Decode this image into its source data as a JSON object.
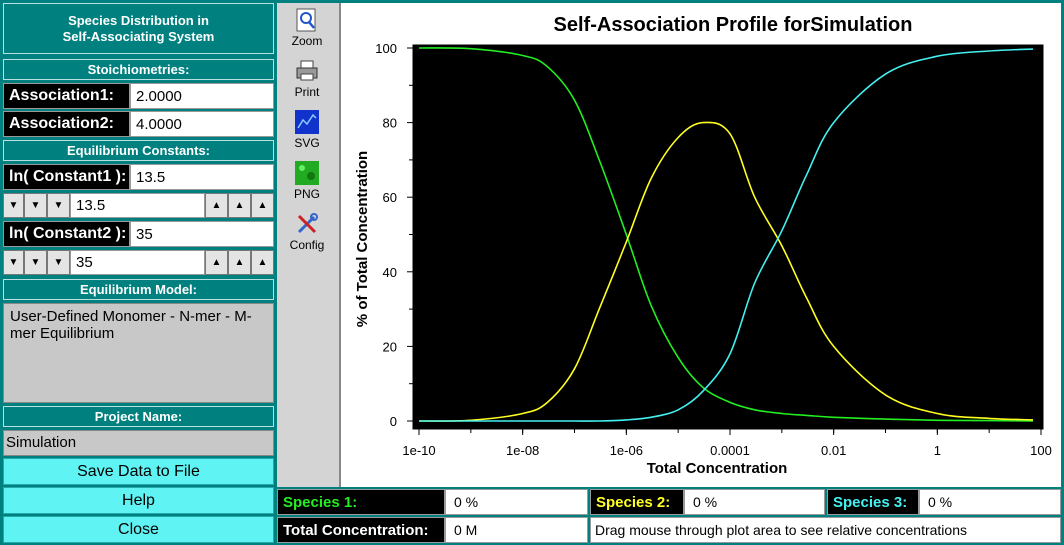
{
  "panel": {
    "title_line1": "Species Distribution in",
    "title_line2": "Self-Associating System",
    "stoich_header": "Stoichiometries:",
    "assoc1_label": "Association1:",
    "assoc1_value": "2.0000",
    "assoc2_label": "Association2:",
    "assoc2_value": "4.0000",
    "eq_header": "Equilibrium Constants:",
    "k1_label": "ln( Constant1 ):",
    "k1_value": "13.5",
    "k1_counter": "13.5",
    "k2_label": "ln( Constant2 ):",
    "k2_value": "35",
    "k2_counter": "35",
    "model_header": "Equilibrium Model:",
    "model_text": "User-Defined Monomer - N-mer - M-mer Equilibrium",
    "project_header": "Project Name:",
    "project_value": "Simulation",
    "save_label": "Save Data to File",
    "help_label": "Help",
    "close_label": "Close"
  },
  "toolbar": {
    "zoom": "Zoom",
    "print": "Print",
    "svg": "SVG",
    "png": "PNG",
    "config": "Config"
  },
  "status": {
    "species1_label": "Species 1:",
    "species1_value": "0 %",
    "species2_label": "Species 2:",
    "species2_value": "0 %",
    "species3_label": "Species 3:",
    "species3_value": "0 %",
    "total_label": "Total Concentration:",
    "total_value": "0 M",
    "hint": "Drag mouse through plot area to see relative concentrations"
  },
  "colors": {
    "teal": "#00807f",
    "cyan_button": "#5ff3f3",
    "species1": "#22ee22",
    "species2": "#ffff22",
    "species3": "#44f0f0"
  },
  "chart_data": {
    "type": "line",
    "title": "Self-Association Profile forSimulation",
    "xlabel": "Total Concentration",
    "ylabel": "% of Total Concentration",
    "xscale": "log",
    "xlim": [
      1e-10,
      100
    ],
    "ylim": [
      0,
      100
    ],
    "xticks": [
      "1e-10",
      "1e-08",
      "1e-06",
      "0.0001",
      "0.01",
      "1",
      "100"
    ],
    "yticks": [
      "0",
      "20",
      "40",
      "60",
      "80",
      "100"
    ],
    "grid": false,
    "background": "#000000",
    "x": [
      1e-10,
      1e-09,
      1e-08,
      3e-08,
      1e-07,
      3e-07,
      1e-06,
      3e-06,
      1e-05,
      3e-05,
      0.0001,
      0.0003,
      0.001,
      0.003,
      0.01,
      0.1,
      1,
      10,
      70
    ],
    "series": [
      {
        "color": "#22ee22",
        "values": [
          100,
          99.8,
          98,
          95,
          86,
          70,
          50,
          31,
          17,
          9,
          5,
          3,
          2,
          1.5,
          1,
          0.5,
          0.2,
          0.1,
          0
        ]
      },
      {
        "color": "#ffff22",
        "values": [
          0,
          0.2,
          2,
          5,
          14,
          30,
          48,
          65,
          76,
          80,
          77,
          60,
          47,
          33,
          20,
          7,
          2,
          0.7,
          0.3
        ]
      },
      {
        "color": "#44f0f0",
        "values": [
          0,
          0,
          0,
          0,
          0,
          0,
          0.3,
          1,
          3,
          8,
          18,
          37,
          51,
          66,
          80,
          93,
          97.8,
          99.2,
          99.7
        ]
      }
    ]
  }
}
